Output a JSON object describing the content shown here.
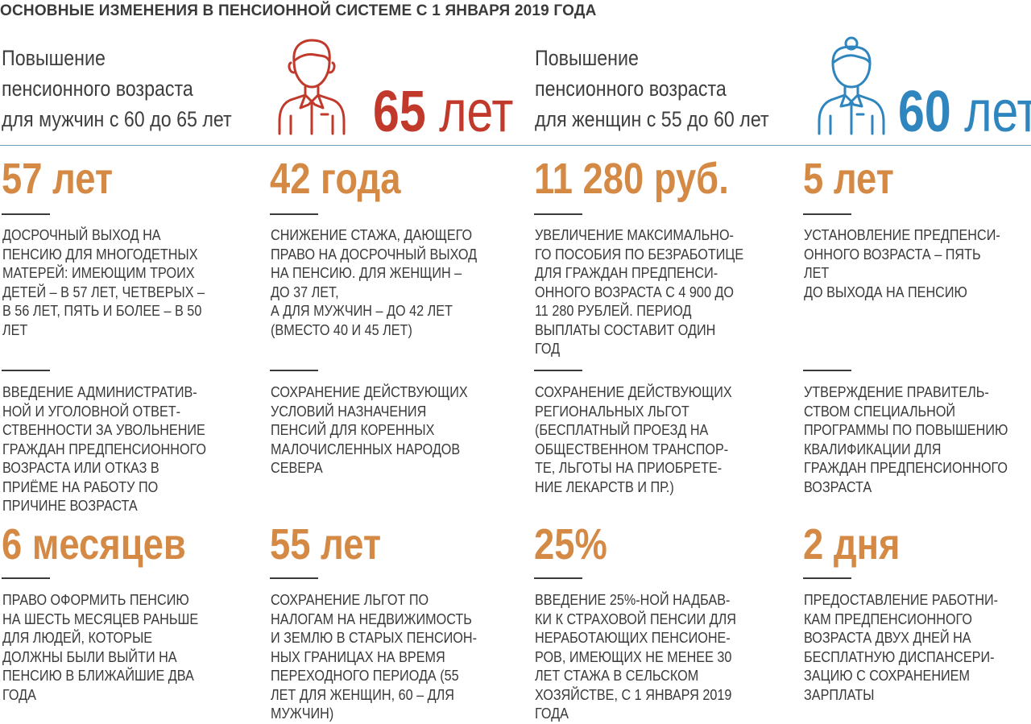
{
  "title": "ОСНОВНЫЕ ИЗМЕНЕНИЯ В ПЕНСИОННОЙ СИСТЕМЕ С 1 ЯНВАРЯ 2019 ГОДА",
  "men": {
    "line1": "Повышение",
    "line2": "пенсионного возраста",
    "line3": "для мужчин с 60 до 65 лет",
    "age_number": "65",
    "age_unit": "лет",
    "icon": "man-icon",
    "color": "#c0392b"
  },
  "women": {
    "line1": "Повышение",
    "line2": "пенсионного возраста",
    "line3": "для женщин с 55 до 60 лет",
    "age_number": "60",
    "age_unit": "лет",
    "icon": "woman-icon",
    "color": "#2f86bf"
  },
  "accent_color": "#d48a45",
  "row1": [
    {
      "stat": "57 лет",
      "text": "Досрочный выход на\nпенсию для многодетных\nматерей: имеющим троих\nдетей – в 57 лет, четверых –\nв 56 лет, пять и более – в 50\nлет"
    },
    {
      "stat": "42 года",
      "text": "Снижение стажа, дающего\nправо на досрочный выход\nна пенсию. Для женщин –\nдо 37 лет,\nа для мужчин – до 42  лет\n(вместо 40 и 45 лет)"
    },
    {
      "stat": "11 280 руб.",
      "text": "Увеличение максимально-\nго пособия по безработице\nдля граждан предпенси-\nонного возраста с 4 900 до\n11 280 рублей. Период\nвыплаты составит один\nгод"
    },
    {
      "stat": "5 лет",
      "text": "Установление предпенси-\nонного возраста – пять лет\nдо выхода на пенсию"
    }
  ],
  "row2": [
    {
      "text": "Введение административ-\nной и уголовной ответ-\nственности за увольнение\nграждан предпенсионного\nвозраста или отказ в\nприёме на работу по\nпричине возраста"
    },
    {
      "text": "Сохранение действующих\nусловий назначения\nпенсий для коренных\nмалочисленных народов\nСевера"
    },
    {
      "text": "Сохранение действующих\nрегиональных льгот\n(бесплатный проезд на\nобщественном транспор-\nте, льготы на приобрете-\nние лекарств и пр.)"
    },
    {
      "text": "Утверждение правитель-\nством специальной\nпрограммы по повышению\nквалификации для\nграждан предпенсионного\nвозраста"
    }
  ],
  "row3": [
    {
      "stat": "6 месяцев",
      "text": "Право оформить пенсию\nна шесть месяцев раньше\nдля людей, которые\nдолжны были выйти на\nпенсию в ближайшие два\nгода"
    },
    {
      "stat": "55 лет",
      "text": "Сохранение льгот по\nналогам на недвижимость\nи землю в старых пенсион-\nных границах на время\nпереходного периода (55\nлет для женщин, 60 – для\nмужчин)"
    },
    {
      "stat": "25%",
      "text": "Введение 25%-ной надбав-\nки к страховой пенсии для\nнеработающих пенсионе-\nров, имеющих не менее 30\nлет стажа в сельском\nхозяйстве, с 1 января 2019\nгода"
    },
    {
      "stat": "2 дня",
      "text": "Предоставление работни-\nкам предпенсионного\nвозраста двух дней на\nбесплатную диспансери-\nзацию с сохранением\nзарплаты"
    }
  ]
}
